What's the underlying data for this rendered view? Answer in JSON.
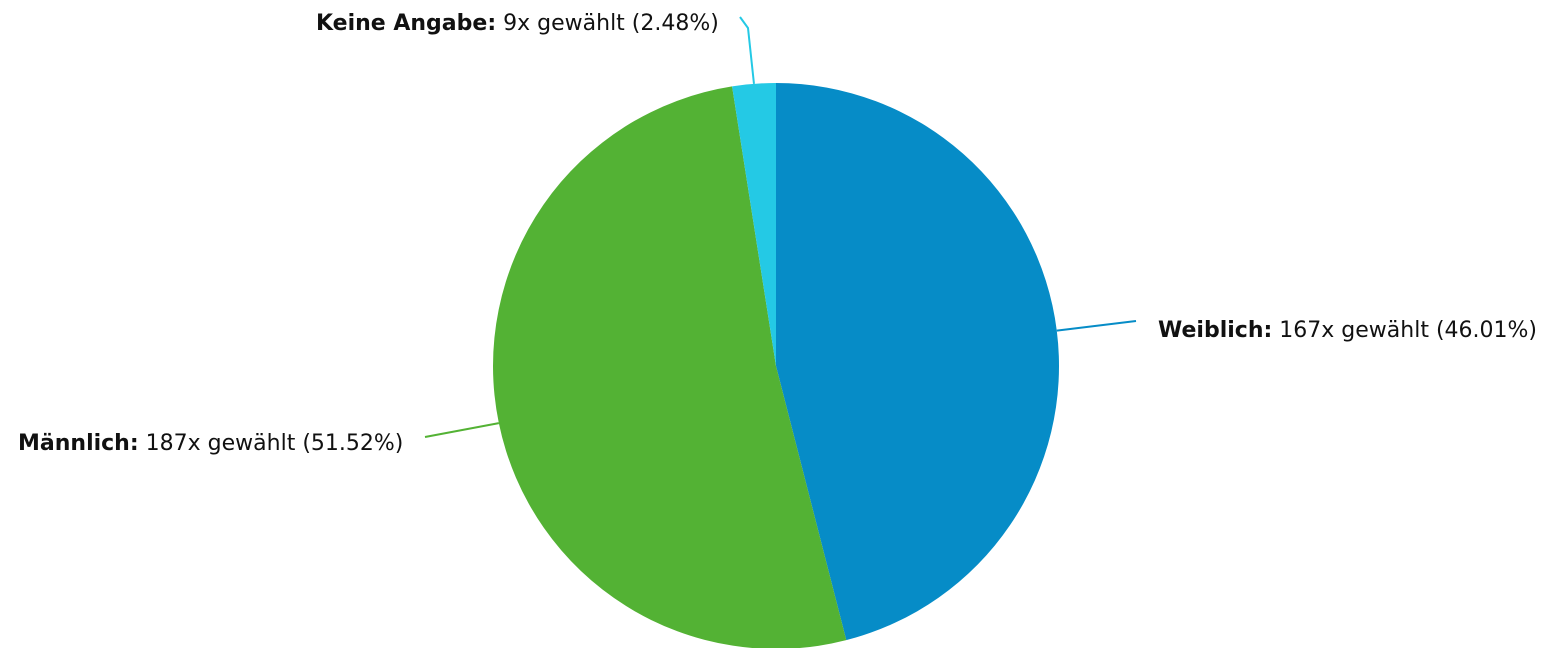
{
  "chart_data": {
    "type": "pie",
    "start_angle_deg": 0,
    "direction": "clockwise",
    "slices": [
      {
        "label": "Weiblich",
        "count_text": "167x gewählt (46.01%)",
        "count": 167,
        "percent": 46.01,
        "color": "#068cc7"
      },
      {
        "label": "Männlich",
        "count_text": "187x gewählt (51.52%)",
        "count": 187,
        "percent": 51.52,
        "color": "#53b234"
      },
      {
        "label": "Keine Angabe",
        "count_text": "9x gewählt (2.48%)",
        "count": 9,
        "percent": 2.48,
        "color": "#24c9e5"
      }
    ]
  }
}
